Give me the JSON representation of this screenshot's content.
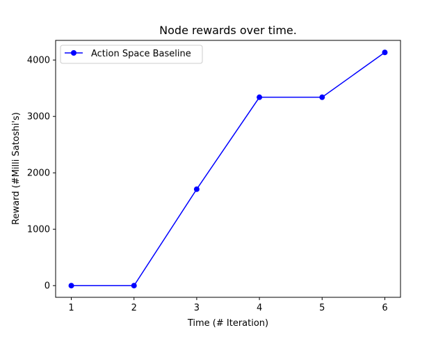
{
  "chart_data": {
    "type": "line",
    "title": "Node rewards over time.",
    "xlabel": "Time (# Iteration)",
    "ylabel": "Reward (#Milli Satoshi's)",
    "x": [
      1,
      2,
      3,
      4,
      5,
      6
    ],
    "xticks": [
      "1",
      "2",
      "3",
      "4",
      "5",
      "6"
    ],
    "yticks": [
      "0",
      "1000",
      "2000",
      "3000",
      "4000"
    ],
    "ytick_values": [
      0,
      1000,
      2000,
      3000,
      4000
    ],
    "xlim": [
      0.75,
      6.25
    ],
    "ylim": [
      -207,
      4348
    ],
    "series": [
      {
        "name": "Action Space Baseline",
        "color": "#0000ff",
        "marker": "circle",
        "values": [
          0,
          0,
          1710,
          3340,
          3340,
          4135
        ]
      }
    ],
    "legend": {
      "placement": "top-left"
    },
    "grid": false
  }
}
